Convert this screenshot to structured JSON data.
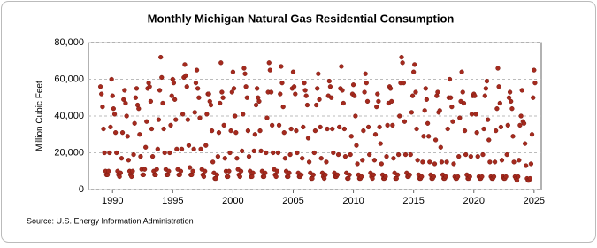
{
  "chart_data": {
    "type": "scatter",
    "title": "Monthly Michigan Natural Gas Residential Consumption",
    "y_label": "Million Cubic Feet",
    "source": "Source: U.S. Energy Information Administration",
    "color": "#a52a1e",
    "grid": true,
    "xlim": [
      1988,
      2025.6
    ],
    "ylim": [
      0,
      80000
    ],
    "xticks": [
      1990,
      1995,
      2000,
      2005,
      2010,
      2015,
      2020,
      2025
    ],
    "yticks": [
      0,
      {
        "value": 20000,
        "label": "20,000"
      },
      {
        "value": 40000,
        "label": "40,000"
      },
      {
        "value": 60000,
        "label": "60,000"
      },
      {
        "value": 80000,
        "label": "80,000"
      }
    ],
    "x": [
      1989.0,
      1989.08,
      1989.17,
      1989.25,
      1989.33,
      1989.42,
      1989.5,
      1989.58,
      1989.67,
      1989.75,
      1989.83,
      1989.92,
      1990.0,
      1990.08,
      1990.17,
      1990.25,
      1990.33,
      1990.42,
      1990.5,
      1990.58,
      1990.67,
      1990.75,
      1990.83,
      1990.92,
      1991.0,
      1991.08,
      1991.17,
      1991.25,
      1991.33,
      1991.42,
      1991.5,
      1991.58,
      1991.67,
      1991.75,
      1991.83,
      1991.92,
      1992.0,
      1992.08,
      1992.17,
      1992.25,
      1992.33,
      1992.42,
      1992.5,
      1992.58,
      1992.67,
      1992.75,
      1992.83,
      1992.92,
      1993.0,
      1993.08,
      1993.17,
      1993.25,
      1993.33,
      1993.42,
      1993.5,
      1993.58,
      1993.67,
      1993.75,
      1993.83,
      1993.92,
      1994.0,
      1994.08,
      1994.17,
      1994.25,
      1994.33,
      1994.42,
      1994.5,
      1994.58,
      1994.67,
      1994.75,
      1994.83,
      1994.92,
      1995.0,
      1995.08,
      1995.17,
      1995.25,
      1995.33,
      1995.42,
      1995.5,
      1995.58,
      1995.67,
      1995.75,
      1995.83,
      1995.92,
      1996.0,
      1996.08,
      1996.17,
      1996.25,
      1996.33,
      1996.42,
      1996.5,
      1996.58,
      1996.67,
      1996.75,
      1996.83,
      1996.92,
      1997.0,
      1997.08,
      1997.17,
      1997.25,
      1997.33,
      1997.42,
      1997.5,
      1997.58,
      1997.67,
      1997.75,
      1997.83,
      1997.92,
      1998.0,
      1998.08,
      1998.17,
      1998.25,
      1998.33,
      1998.42,
      1998.5,
      1998.58,
      1998.67,
      1998.75,
      1998.83,
      1998.92,
      1999.0,
      1999.08,
      1999.17,
      1999.25,
      1999.33,
      1999.42,
      1999.5,
      1999.58,
      1999.67,
      1999.75,
      1999.83,
      1999.92,
      2000.0,
      2000.08,
      2000.17,
      2000.25,
      2000.33,
      2000.42,
      2000.5,
      2000.58,
      2000.67,
      2000.75,
      2000.83,
      2000.92,
      2001.0,
      2001.08,
      2001.17,
      2001.25,
      2001.33,
      2001.42,
      2001.5,
      2001.58,
      2001.67,
      2001.75,
      2001.83,
      2001.92,
      2002.0,
      2002.08,
      2002.17,
      2002.25,
      2002.33,
      2002.42,
      2002.5,
      2002.58,
      2002.67,
      2002.75,
      2002.83,
      2002.92,
      2003.0,
      2003.08,
      2003.17,
      2003.25,
      2003.33,
      2003.42,
      2003.5,
      2003.58,
      2003.67,
      2003.75,
      2003.83,
      2003.92,
      2004.0,
      2004.08,
      2004.17,
      2004.25,
      2004.33,
      2004.42,
      2004.5,
      2004.58,
      2004.67,
      2004.75,
      2004.83,
      2004.92,
      2005.0,
      2005.08,
      2005.17,
      2005.25,
      2005.33,
      2005.42,
      2005.5,
      2005.58,
      2005.67,
      2005.75,
      2005.83,
      2005.92,
      2006.0,
      2006.08,
      2006.17,
      2006.25,
      2006.33,
      2006.42,
      2006.5,
      2006.58,
      2006.67,
      2006.75,
      2006.83,
      2006.92,
      2007.0,
      2007.08,
      2007.17,
      2007.25,
      2007.33,
      2007.42,
      2007.5,
      2007.58,
      2007.67,
      2007.75,
      2007.83,
      2007.92,
      2008.0,
      2008.08,
      2008.17,
      2008.25,
      2008.33,
      2008.42,
      2008.5,
      2008.58,
      2008.67,
      2008.75,
      2008.83,
      2008.92,
      2009.0,
      2009.08,
      2009.17,
      2009.25,
      2009.33,
      2009.42,
      2009.5,
      2009.58,
      2009.67,
      2009.75,
      2009.83,
      2009.92,
      2010.0,
      2010.08,
      2010.17,
      2010.25,
      2010.33,
      2010.42,
      2010.5,
      2010.58,
      2010.67,
      2010.75,
      2010.83,
      2010.92,
      2011.0,
      2011.08,
      2011.17,
      2011.25,
      2011.33,
      2011.42,
      2011.5,
      2011.58,
      2011.67,
      2011.75,
      2011.83,
      2011.92,
      2012.0,
      2012.08,
      2012.17,
      2012.25,
      2012.33,
      2012.42,
      2012.5,
      2012.58,
      2012.67,
      2012.75,
      2012.83,
      2012.92,
      2013.0,
      2013.08,
      2013.17,
      2013.25,
      2013.33,
      2013.42,
      2013.5,
      2013.58,
      2013.67,
      2013.75,
      2013.83,
      2013.92,
      2014.0,
      2014.08,
      2014.17,
      2014.25,
      2014.33,
      2014.42,
      2014.5,
      2014.58,
      2014.67,
      2014.75,
      2014.83,
      2014.92,
      2015.0,
      2015.08,
      2015.17,
      2015.25,
      2015.33,
      2015.42,
      2015.5,
      2015.58,
      2015.67,
      2015.75,
      2015.83,
      2015.92,
      2016.0,
      2016.08,
      2016.17,
      2016.25,
      2016.33,
      2016.42,
      2016.5,
      2016.58,
      2016.67,
      2016.75,
      2016.83,
      2016.92,
      2017.0,
      2017.08,
      2017.17,
      2017.25,
      2017.33,
      2017.42,
      2017.5,
      2017.58,
      2017.67,
      2017.75,
      2017.83,
      2017.92,
      2018.0,
      2018.08,
      2018.17,
      2018.25,
      2018.33,
      2018.42,
      2018.5,
      2018.58,
      2018.67,
      2018.75,
      2018.83,
      2018.92,
      2019.0,
      2019.08,
      2019.17,
      2019.25,
      2019.33,
      2019.42,
      2019.5,
      2019.58,
      2019.67,
      2019.75,
      2019.83,
      2019.92,
      2020.0,
      2020.08,
      2020.17,
      2020.25,
      2020.33,
      2020.42,
      2020.5,
      2020.58,
      2020.67,
      2020.75,
      2020.83,
      2020.92,
      2021.0,
      2021.08,
      2021.17,
      2021.25,
      2021.33,
      2021.42,
      2021.5,
      2021.58,
      2021.67,
      2021.75,
      2021.83,
      2021.92,
      2022.0,
      2022.08,
      2022.17,
      2022.25,
      2022.33,
      2022.42,
      2022.5,
      2022.58,
      2022.67,
      2022.75,
      2022.83,
      2022.92,
      2023.0,
      2023.08,
      2023.17,
      2023.25,
      2023.33,
      2023.42,
      2023.5,
      2023.58,
      2023.67,
      2023.75,
      2023.83,
      2023.92,
      2024.0,
      2024.08,
      2024.17,
      2024.25,
      2024.33,
      2024.42,
      2024.5,
      2024.58,
      2024.67,
      2024.75,
      2024.83,
      2024.92,
      2025.0,
      2025.08
    ],
    "values": [
      56000,
      52000,
      45000,
      33000,
      20000,
      10000,
      8000,
      8000,
      10000,
      20000,
      34000,
      60000,
      51000,
      44000,
      41000,
      31000,
      20000,
      10000,
      8000,
      7000,
      9000,
      17000,
      31000,
      49000,
      54000,
      47000,
      40000,
      29000,
      16000,
      10000,
      8000,
      7000,
      10000,
      19000,
      36000,
      50000,
      55000,
      46000,
      44000,
      30000,
      18000,
      11000,
      8000,
      8000,
      11000,
      23000,
      37000,
      55000,
      58000,
      56000,
      48000,
      33000,
      18000,
      10000,
      8000,
      8000,
      11000,
      22000,
      38000,
      54000,
      72000,
      61000,
      47000,
      33000,
      20000,
      11000,
      8000,
      8000,
      10000,
      20000,
      35000,
      51000,
      60000,
      58000,
      49000,
      38000,
      22000,
      11000,
      8000,
      8000,
      10000,
      22000,
      41000,
      61000,
      68000,
      62000,
      56000,
      38000,
      24000,
      12000,
      8000,
      8000,
      10000,
      22000,
      42000,
      58000,
      65000,
      55000,
      50000,
      39000,
      22000,
      11000,
      8000,
      7000,
      10000,
      24000,
      41000,
      52000,
      52000,
      48000,
      46000,
      32000,
      15000,
      9000,
      6000,
      6000,
      8000,
      18000,
      31000,
      47000,
      69000,
      53000,
      50000,
      35000,
      17000,
      10000,
      7000,
      7000,
      10000,
      20000,
      32000,
      53000,
      64000,
      55000,
      40000,
      31000,
      17000,
      11000,
      8000,
      7000,
      10000,
      21000,
      41000,
      66000,
      63000,
      56000,
      50000,
      32000,
      18000,
      10000,
      7000,
      7000,
      9000,
      21000,
      30000,
      46000,
      55000,
      50000,
      48000,
      32000,
      21000,
      10000,
      7000,
      7000,
      9000,
      20000,
      39000,
      53000,
      69000,
      65000,
      53000,
      35000,
      20000,
      11000,
      8000,
      7000,
      10000,
      20000,
      35000,
      52000,
      67000,
      58000,
      45000,
      31000,
      17000,
      10000,
      7000,
      7000,
      9000,
      19000,
      33000,
      55000,
      64000,
      56000,
      52000,
      32000,
      20000,
      9000,
      7000,
      7000,
      8000,
      17000,
      34000,
      58000,
      54000,
      51000,
      46000,
      28000,
      15000,
      9000,
      6000,
      6000,
      8000,
      20000,
      32000,
      46000,
      55000,
      63000,
      49000,
      34000,
      17000,
      9000,
      7000,
      6000,
      8000,
      15000,
      33000,
      51000,
      59000,
      56000,
      50000,
      33000,
      20000,
      9000,
      7000,
      7000,
      8000,
      19000,
      34000,
      55000,
      67000,
      54000,
      47000,
      33000,
      18000,
      9000,
      6000,
      6000,
      8000,
      19000,
      29000,
      52000,
      57000,
      51000,
      40000,
      24000,
      14000,
      8000,
      6000,
      6000,
      7000,
      16000,
      32000,
      53000,
      63000,
      58000,
      48000,
      34000,
      19000,
      9000,
      7000,
      6000,
      8000,
      16000,
      30000,
      45000,
      52000,
      48000,
      34000,
      25000,
      14000,
      8000,
      6000,
      6000,
      7000,
      18000,
      35000,
      47000,
      56000,
      55000,
      48000,
      35000,
      17000,
      9000,
      6000,
      6000,
      8000,
      19000,
      40000,
      58000,
      72000,
      69000,
      58000,
      37000,
      19000,
      9000,
      7000,
      7000,
      8000,
      19000,
      42000,
      51000,
      64000,
      68000,
      53000,
      33000,
      16000,
      8000,
      6000,
      6000,
      7000,
      15000,
      29000,
      43000,
      55000,
      49000,
      36000,
      29000,
      15000,
      8000,
      6000,
      6000,
      7000,
      14000,
      27000,
      51000,
      53000,
      42000,
      43000,
      23000,
      15000,
      8000,
      6000,
      6000,
      7000,
      15000,
      33000,
      50000,
      60000,
      50000,
      45000,
      37000,
      14000,
      7000,
      6000,
      6000,
      7000,
      18000,
      39000,
      48000,
      64000,
      53000,
      47000,
      32000,
      19000,
      8000,
      6000,
      6000,
      7000,
      18000,
      41000,
      51000,
      52000,
      51000,
      41000,
      31000,
      18000,
      7000,
      6000,
      6000,
      7000,
      19000,
      33000,
      51000,
      55000,
      59000,
      38000,
      27000,
      15000,
      7000,
      6000,
      6000,
      7000,
      15000,
      32000,
      44000,
      66000,
      56000,
      47000,
      34000,
      16000,
      7000,
      6000,
      6000,
      7000,
      19000,
      35000,
      50000,
      53000,
      48000,
      44000,
      29000,
      15000,
      7000,
      6000,
      5000,
      7000,
      16000,
      35000,
      40000,
      54000,
      37000,
      36000,
      25000,
      13000,
      6000,
      5000,
      5000,
      6000,
      14000,
      30000,
      50000,
      65000,
      58000
    ]
  }
}
